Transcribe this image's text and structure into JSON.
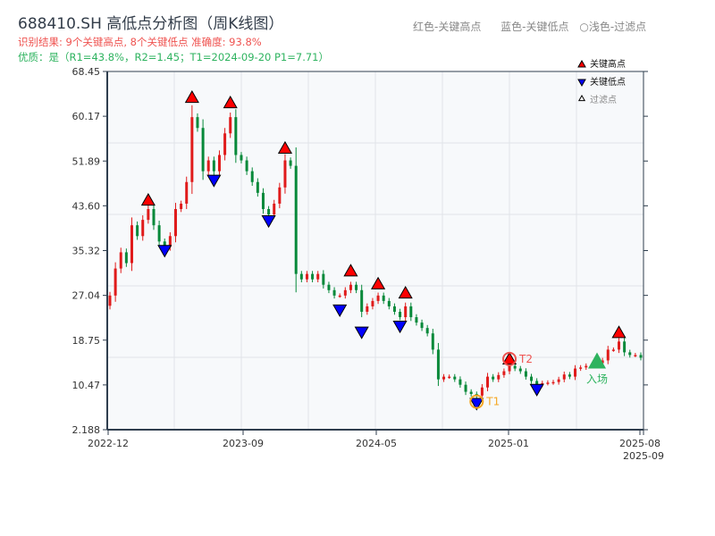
{
  "header": {
    "title": "688410.SH 高低点分析图（周K线图）",
    "result_line": "识别结果: 9个关键高点, 8个关键低点  准确度: 93.8%",
    "quality_line": "优质：是（R1=43.8%，R2=1.45；T1=2024-09-20 P1=7.71）"
  },
  "top_legend": [
    "红色-关键高点",
    "蓝色-关键低点",
    "○浅色-过滤点"
  ],
  "colors": {
    "up": "#e01b1b",
    "down": "#07893a",
    "high_marker": "#ff0000",
    "low_marker": "#0000ff",
    "t1": "#f5a623",
    "t2": "#ef5350",
    "entry": "#2eb35f"
  },
  "chart_data": {
    "type": "candlestick",
    "title": "688410.SH 高低点分析图（周K线图）",
    "ylim": [
      2.188,
      68.45
    ],
    "y_ticks": [
      "68.45",
      "60.17",
      "51.89",
      "43.60",
      "35.32",
      "27.04",
      "18.75",
      "10.47",
      "2.188"
    ],
    "x_ticks": [
      "2022-12",
      "2023-09",
      "2024-05",
      "2025-01",
      "2025-08",
      "2025-09"
    ],
    "grid": true,
    "legend": {
      "placement": "top-right",
      "entries": [
        "关键高点",
        "关键低点",
        "过滤点"
      ]
    },
    "closes": [
      27,
      32,
      35,
      33,
      40,
      38,
      41,
      43,
      40,
      37,
      36,
      38,
      43,
      44,
      48,
      60,
      58,
      50,
      52,
      50,
      53,
      57,
      60,
      53,
      52,
      50,
      48,
      46,
      43,
      42,
      44,
      47,
      52,
      51,
      31,
      30,
      31,
      30,
      31,
      29,
      28,
      27,
      27,
      28,
      29,
      28,
      24,
      25,
      26,
      27,
      26,
      25,
      24,
      23,
      25,
      23,
      22,
      21,
      20,
      17,
      11.5,
      12,
      12,
      11.5,
      10.5,
      9.2,
      8.8,
      8.5,
      10,
      12,
      11.5,
      12.3,
      13,
      14,
      13.5,
      13,
      12,
      11.2,
      10.5,
      10.8,
      10.9,
      11,
      11.5,
      12.4,
      12,
      13.5,
      13.7,
      14,
      14,
      14.5,
      15,
      17,
      17,
      18.5,
      16.5,
      16,
      16,
      15.5
    ],
    "key_highs": [
      {
        "i": 7,
        "price": 44
      },
      {
        "i": 15,
        "price": 63
      },
      {
        "i": 22,
        "price": 62
      },
      {
        "i": 32,
        "price": 53.6
      },
      {
        "i": 44,
        "price": 30.9
      },
      {
        "i": 49,
        "price": 28.5
      },
      {
        "i": 54,
        "price": 26.8
      },
      {
        "i": 73,
        "price": 14.6,
        "label": "T2"
      },
      {
        "i": 93,
        "price": 19.5
      }
    ],
    "key_lows": [
      {
        "i": 10,
        "price": 36
      },
      {
        "i": 19,
        "price": 49
      },
      {
        "i": 29,
        "price": 41.5
      },
      {
        "i": 42,
        "price": 25
      },
      {
        "i": 46,
        "price": 20.9
      },
      {
        "i": 53,
        "price": 22
      },
      {
        "i": 67,
        "price": 7.71,
        "label": "T1"
      },
      {
        "i": 78,
        "price": 10.3
      }
    ],
    "entry": {
      "i": 89,
      "price": 14.5,
      "label": "入场"
    }
  }
}
